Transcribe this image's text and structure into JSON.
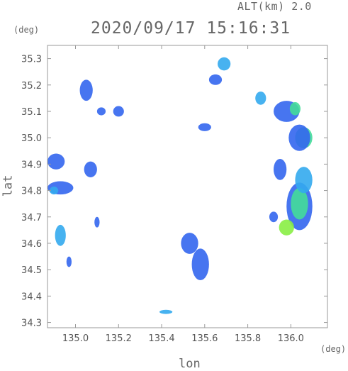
{
  "header": {
    "altitude_text": "ALT(km) 2.0",
    "timestamp": "2020/09/17 15:16:31"
  },
  "axes": {
    "y_unit": "(deg)",
    "x_unit": "(deg)",
    "x_title": "lon",
    "y_title": "lat"
  },
  "chart_data": {
    "type": "heatmap",
    "description_units": "longitude/latitude degrees",
    "xlabel": "lon",
    "ylabel": "lat",
    "xlim": [
      134.87,
      136.17
    ],
    "ylim": [
      34.28,
      35.35
    ],
    "x_ticks": [
      135.0,
      135.2,
      135.4,
      135.6,
      135.8,
      136.0
    ],
    "y_ticks": [
      34.3,
      34.4,
      34.5,
      34.6,
      34.7,
      34.8,
      34.9,
      35.0,
      35.1,
      35.2,
      35.3
    ],
    "x_tick_labels": [
      "135.0",
      "135.2",
      "135.4",
      "135.6",
      "135.8",
      "136.0"
    ],
    "y_tick_labels": [
      "34.3",
      "34.4",
      "34.5",
      "34.6",
      "34.7",
      "34.8",
      "34.9",
      "35.0",
      "35.1",
      "35.2",
      "35.3"
    ],
    "grid": false,
    "colors": {
      "weak": "#3366ee",
      "light": "#33aaee",
      "moderate": "#44dd99",
      "strong": "#88ee44"
    },
    "echo_cells": [
      {
        "lon": 136.04,
        "lat": 34.74,
        "rx": 0.06,
        "ry": 0.09,
        "level": "weak"
      },
      {
        "lon": 136.04,
        "lat": 34.75,
        "rx": 0.04,
        "ry": 0.06,
        "level": "moderate"
      },
      {
        "lon": 135.98,
        "lat": 34.66,
        "rx": 0.035,
        "ry": 0.03,
        "level": "strong"
      },
      {
        "lon": 136.06,
        "lat": 34.84,
        "rx": 0.04,
        "ry": 0.05,
        "level": "light"
      },
      {
        "lon": 136.06,
        "lat": 35.0,
        "rx": 0.04,
        "ry": 0.04,
        "level": "moderate"
      },
      {
        "lon": 136.04,
        "lat": 35.0,
        "rx": 0.05,
        "ry": 0.05,
        "level": "weak"
      },
      {
        "lon": 135.98,
        "lat": 35.1,
        "rx": 0.06,
        "ry": 0.04,
        "level": "weak"
      },
      {
        "lon": 136.02,
        "lat": 35.11,
        "rx": 0.025,
        "ry": 0.025,
        "level": "moderate"
      },
      {
        "lon": 135.95,
        "lat": 34.88,
        "rx": 0.03,
        "ry": 0.04,
        "level": "weak"
      },
      {
        "lon": 135.92,
        "lat": 34.7,
        "rx": 0.02,
        "ry": 0.02,
        "level": "weak"
      },
      {
        "lon": 135.86,
        "lat": 35.15,
        "rx": 0.025,
        "ry": 0.025,
        "level": "light"
      },
      {
        "lon": 135.69,
        "lat": 35.28,
        "rx": 0.03,
        "ry": 0.025,
        "level": "light"
      },
      {
        "lon": 135.65,
        "lat": 35.22,
        "rx": 0.03,
        "ry": 0.02,
        "level": "weak"
      },
      {
        "lon": 135.6,
        "lat": 35.04,
        "rx": 0.03,
        "ry": 0.015,
        "level": "weak"
      },
      {
        "lon": 134.93,
        "lat": 34.81,
        "rx": 0.06,
        "ry": 0.025,
        "level": "weak"
      },
      {
        "lon": 134.9,
        "lat": 34.8,
        "rx": 0.02,
        "ry": 0.015,
        "level": "light"
      },
      {
        "lon": 134.91,
        "lat": 34.91,
        "rx": 0.04,
        "ry": 0.03,
        "level": "weak"
      },
      {
        "lon": 134.93,
        "lat": 34.63,
        "rx": 0.025,
        "ry": 0.04,
        "level": "light"
      },
      {
        "lon": 134.97,
        "lat": 34.53,
        "rx": 0.012,
        "ry": 0.02,
        "level": "weak"
      },
      {
        "lon": 135.07,
        "lat": 34.88,
        "rx": 0.03,
        "ry": 0.03,
        "level": "weak"
      },
      {
        "lon": 135.12,
        "lat": 35.1,
        "rx": 0.02,
        "ry": 0.015,
        "level": "weak"
      },
      {
        "lon": 135.2,
        "lat": 35.1,
        "rx": 0.025,
        "ry": 0.02,
        "level": "weak"
      },
      {
        "lon": 135.58,
        "lat": 34.52,
        "rx": 0.04,
        "ry": 0.06,
        "level": "weak"
      },
      {
        "lon": 135.53,
        "lat": 34.6,
        "rx": 0.04,
        "ry": 0.04,
        "level": "weak"
      },
      {
        "lon": 135.1,
        "lat": 34.68,
        "rx": 0.012,
        "ry": 0.02,
        "level": "weak"
      },
      {
        "lon": 135.42,
        "lat": 34.34,
        "rx": 0.03,
        "ry": 0.008,
        "level": "light"
      },
      {
        "lon": 135.05,
        "lat": 35.18,
        "rx": 0.03,
        "ry": 0.04,
        "level": "weak"
      }
    ]
  }
}
